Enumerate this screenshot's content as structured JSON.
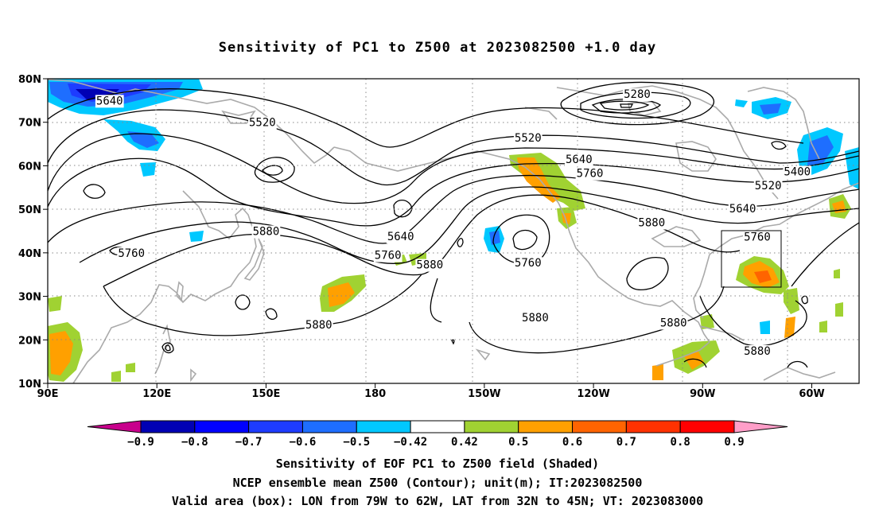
{
  "title": "Sensitivity of PC1 to Z500 at 2023082500 +1.0 day",
  "lat_labels": [
    "80N",
    "70N",
    "60N",
    "50N",
    "40N",
    "30N",
    "20N",
    "10N"
  ],
  "lon_labels": [
    "90E",
    "120E",
    "150E",
    "180",
    "150W",
    "120W",
    "90W",
    "60W"
  ],
  "contour_labels": [
    {
      "text": "5640",
      "lon": 107,
      "lat": 75
    },
    {
      "text": "5520",
      "lon": 149,
      "lat": 70
    },
    {
      "text": "5280",
      "lon": -108,
      "lat": 76.5
    },
    {
      "text": "5520",
      "lon": -138,
      "lat": 66.5
    },
    {
      "text": "5640",
      "lon": -124,
      "lat": 61.5
    },
    {
      "text": "5760",
      "lon": -121,
      "lat": 58.3
    },
    {
      "text": "5400",
      "lon": -64,
      "lat": 58.7
    },
    {
      "text": "5520",
      "lon": -72,
      "lat": 55.5
    },
    {
      "text": "5640",
      "lon": -79,
      "lat": 50.2
    },
    {
      "text": "5760",
      "lon": -75,
      "lat": 43.7
    },
    {
      "text": "5880",
      "lon": -104,
      "lat": 47
    },
    {
      "text": "5880",
      "lon": 150,
      "lat": 45
    },
    {
      "text": "5760",
      "lon": 113,
      "lat": 40
    },
    {
      "text": "5640",
      "lon": -173,
      "lat": 43.8
    },
    {
      "text": "5760",
      "lon": -176.5,
      "lat": 39.5
    },
    {
      "text": "5880",
      "lon": -165,
      "lat": 37.3
    },
    {
      "text": "5760",
      "lon": -138,
      "lat": 37.8
    },
    {
      "text": "5880",
      "lon": -136,
      "lat": 25.2
    },
    {
      "text": "5880",
      "lon": 164.5,
      "lat": 23.5
    },
    {
      "text": "5880",
      "lon": -98,
      "lat": 24
    },
    {
      "text": "5880",
      "lon": -75,
      "lat": 17.5
    }
  ],
  "colorbar": {
    "tick_labels": [
      "−0.9",
      "−0.8",
      "−0.7",
      "−0.6",
      "−0.5",
      "−0.42",
      "0.42",
      "0.5",
      "0.6",
      "0.7",
      "0.8",
      "0.9"
    ],
    "colors": [
      "#c8008c",
      "#0000b4",
      "#0000ff",
      "#1e3cff",
      "#1e6eff",
      "#00c8ff",
      "#ffffff",
      "#a0d232",
      "#ffa000",
      "#ff6400",
      "#ff3200",
      "#ff0000",
      "#ff9ec8"
    ]
  },
  "captions": [
    "Sensitivity of EOF PC1 to Z500 field (Shaded)",
    "NCEP ensemble mean Z500 (Contour); unit(m); IT:2023082500",
    "Valid area (box): LON from 79W to 62W, LAT from 32N to 45N; VT: 2023083000"
  ],
  "valid_box": {
    "lon_min": -79,
    "lon_max": -62,
    "lat_min": 32,
    "lat_max": 45
  }
}
